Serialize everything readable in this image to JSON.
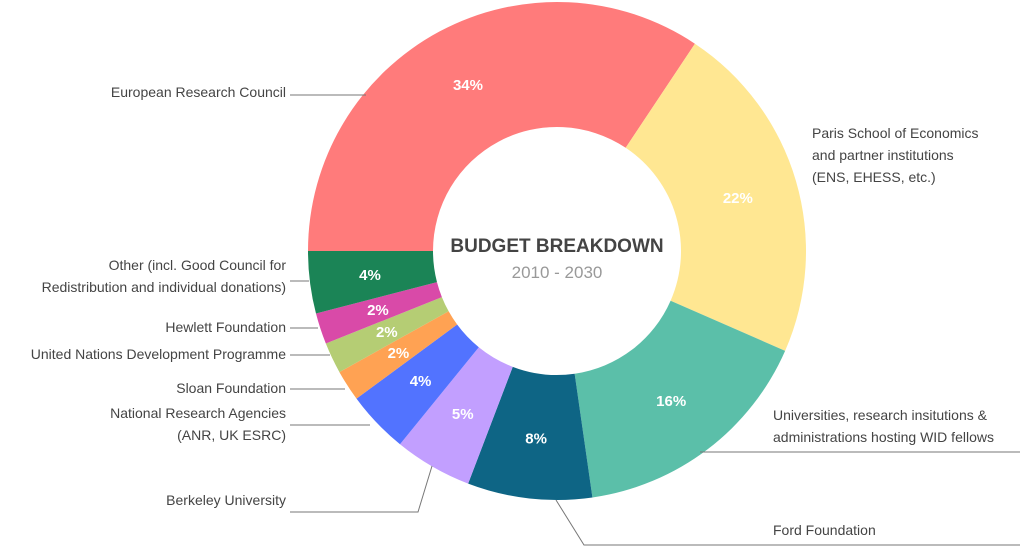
{
  "chart_data": {
    "type": "pie",
    "title": "BUDGET BREAKDOWN",
    "subtitle": "2010 - 2030",
    "slices": [
      {
        "name": [
          "European Research Council"
        ],
        "value": 34,
        "label": "34%",
        "color": "#ff7b7b"
      },
      {
        "name": [
          "Paris School of Economics",
          "and partner institutions",
          "(ENS, EHESS, etc.)"
        ],
        "value": 22,
        "label": "22%",
        "color": "#ffe792"
      },
      {
        "name": [
          "Universities, research insitutions &",
          "administrations hosting WID fellows"
        ],
        "value": 16,
        "label": "16%",
        "color": "#5bbfa9"
      },
      {
        "name": [
          "Ford Foundation"
        ],
        "value": 8,
        "label": "8%",
        "color": "#0e6585"
      },
      {
        "name": [
          "Berkeley University"
        ],
        "value": 5,
        "label": "5%",
        "color": "#c29fff"
      },
      {
        "name": [
          "National Research Agencies",
          "(ANR, UK ESRC)"
        ],
        "value": 4,
        "label": "4%",
        "color": "#5273ff"
      },
      {
        "name": [
          "Sloan Foundation"
        ],
        "value": 2,
        "label": "2%",
        "color": "#ffa253"
      },
      {
        "name": [
          "United Nations Development Programme"
        ],
        "value": 2,
        "label": "2%",
        "color": "#b5cd74"
      },
      {
        "name": [
          "Hewlett Foundation"
        ],
        "value": 2,
        "label": "2%",
        "color": "#d94aa8"
      },
      {
        "name": [
          "Other (incl. Good Council for",
          "Redistribution and individual donations)"
        ],
        "value": 4,
        "label": "4%",
        "color": "#1b8456"
      }
    ]
  }
}
